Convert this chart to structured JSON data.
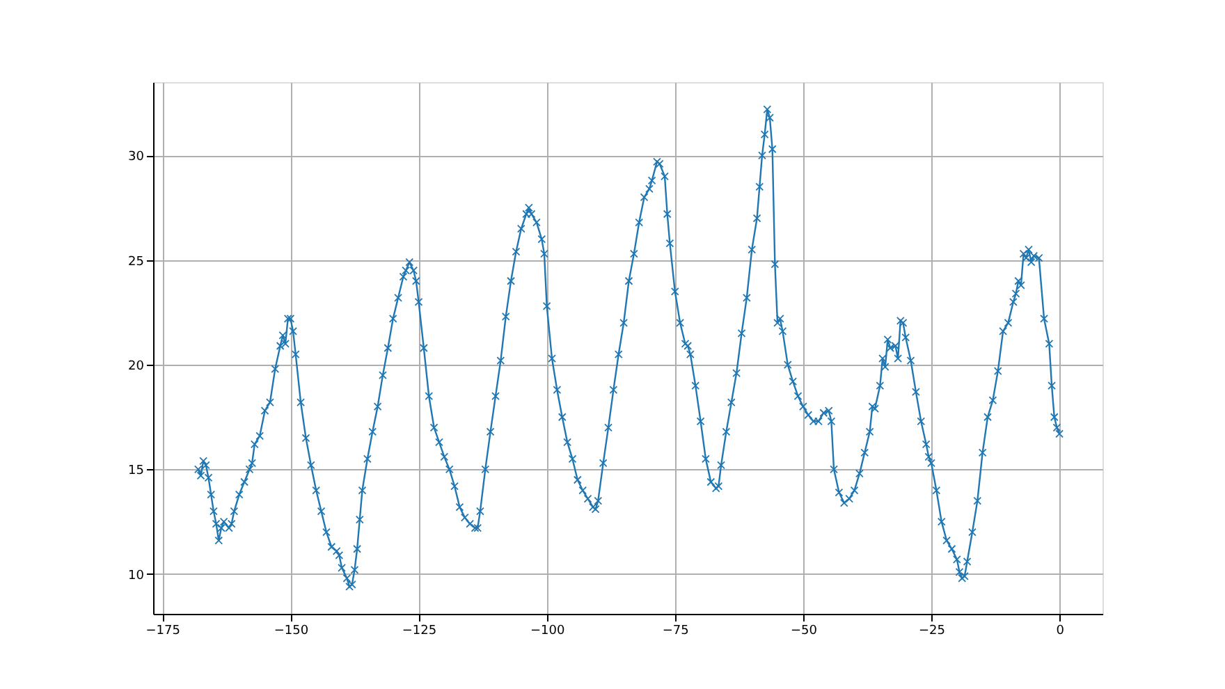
{
  "chart_data": {
    "type": "line",
    "marker": "cross",
    "line_style": "solid",
    "grid": true,
    "xlim": [
      -176.8,
      8.4
    ],
    "ylim": [
      8.1,
      33.5
    ],
    "xticks": [
      -175,
      -150,
      -125,
      -100,
      -75,
      -50,
      -25,
      0
    ],
    "yticks": [
      10,
      15,
      20,
      25,
      30
    ],
    "x": [
      -168,
      -167.5,
      -167,
      -166.5,
      -166,
      -165.5,
      -165,
      -164.5,
      -164,
      -163.5,
      -163,
      -162,
      -161.5,
      -161,
      -160,
      -159,
      -158,
      -157.5,
      -157,
      -156,
      -155,
      -154,
      -153,
      -152,
      -151.5,
      -151,
      -150.5,
      -150,
      -149.5,
      -149,
      -148,
      -147,
      -146,
      -145,
      -144,
      -143,
      -142,
      -141,
      -140.5,
      -140,
      -139,
      -138.5,
      -138,
      -137.5,
      -137,
      -136.5,
      -136,
      -135,
      -134,
      -133,
      -132,
      -131,
      -130,
      -129,
      -128,
      -127.5,
      -126.8,
      -126,
      -125.5,
      -125,
      -124,
      -123,
      -122,
      -121,
      -120,
      -119,
      -118,
      -117,
      -116,
      -115,
      -114,
      -113.5,
      -113,
      -112,
      -111,
      -110,
      -109,
      -108,
      -107,
      -106,
      -105,
      -104,
      -103.5,
      -103,
      -102,
      -101,
      -100.5,
      -100,
      -99,
      -98,
      -97,
      -96,
      -95,
      -94,
      -93,
      -92,
      -91,
      -90.5,
      -90,
      -89,
      -88,
      -87,
      -86,
      -85,
      -84,
      -83,
      -82,
      -81,
      -80,
      -79.5,
      -78.5,
      -78,
      -77,
      -76.5,
      -76,
      -75,
      -74,
      -73,
      -72.5,
      -72,
      -71,
      -70,
      -69,
      -68,
      -67,
      -66.5,
      -66,
      -65,
      -64,
      -63,
      -62,
      -61,
      -60,
      -59,
      -58.5,
      -58,
      -57.5,
      -57,
      -56.5,
      -56,
      -55.5,
      -55,
      -54.5,
      -54,
      -53,
      -52,
      -51,
      -50,
      -49,
      -48,
      -47,
      -46,
      -45,
      -44.5,
      -44,
      -43,
      -42,
      -41,
      -40,
      -39,
      -38,
      -37,
      -36.5,
      -36,
      -35,
      -34.5,
      -34,
      -33.5,
      -33,
      -32,
      -31.5,
      -31,
      -30.5,
      -30,
      -29,
      -28,
      -27,
      -26,
      -25.5,
      -25,
      -24,
      -23,
      -22,
      -21,
      -20,
      -19.5,
      -19,
      -18.5,
      -18,
      -17,
      -16,
      -15,
      -14,
      -13,
      -12,
      -11,
      -10,
      -9,
      -8.5,
      -8,
      -7.5,
      -7,
      -6.5,
      -6,
      -5.5,
      -5,
      -4,
      -3,
      -2,
      -1.5,
      -1,
      -0.5,
      0
    ],
    "series": [
      {
        "color": "#1f77b4",
        "values": [
          15.0,
          14.7,
          15.4,
          15.2,
          14.6,
          13.8,
          13.0,
          12.4,
          11.6,
          12.2,
          12.5,
          12.2,
          12.4,
          13.0,
          13.8,
          14.4,
          15.0,
          15.3,
          16.2,
          16.6,
          17.8,
          18.2,
          19.8,
          20.9,
          21.4,
          21.0,
          22.2,
          22.2,
          21.6,
          20.5,
          18.2,
          16.5,
          15.2,
          14.0,
          13.0,
          12.0,
          11.3,
          11.1,
          10.9,
          10.3,
          9.8,
          9.4,
          9.5,
          10.2,
          11.2,
          12.6,
          14.0,
          15.5,
          16.8,
          18.0,
          19.5,
          20.8,
          22.2,
          23.2,
          24.2,
          24.5,
          24.9,
          24.5,
          24.0,
          23.0,
          20.8,
          18.5,
          17.0,
          16.3,
          15.6,
          15.0,
          14.2,
          13.2,
          12.7,
          12.4,
          12.2,
          12.2,
          13.0,
          15.0,
          16.8,
          18.5,
          20.2,
          22.3,
          24.0,
          25.4,
          26.5,
          27.2,
          27.5,
          27.2,
          26.8,
          26.0,
          25.3,
          22.8,
          20.3,
          18.8,
          17.5,
          16.3,
          15.5,
          14.5,
          14.0,
          13.6,
          13.2,
          13.1,
          13.5,
          15.3,
          17.0,
          18.8,
          20.5,
          22.0,
          24.0,
          25.3,
          26.8,
          28.0,
          28.4,
          28.8,
          29.7,
          29.6,
          29.0,
          27.2,
          25.8,
          23.5,
          22.0,
          21.0,
          20.9,
          20.5,
          19.0,
          17.3,
          15.5,
          14.4,
          14.1,
          14.2,
          15.2,
          16.8,
          18.2,
          19.6,
          21.5,
          23.2,
          25.5,
          27.0,
          28.5,
          30.0,
          31.0,
          32.2,
          31.8,
          30.3,
          24.8,
          22.0,
          22.2,
          21.6,
          20.0,
          19.2,
          18.5,
          18.0,
          17.6,
          17.3,
          17.3,
          17.7,
          17.8,
          17.3,
          15.0,
          13.9,
          13.4,
          13.6,
          14.0,
          14.8,
          15.8,
          16.8,
          18.0,
          17.9,
          19.0,
          20.3,
          19.9,
          21.2,
          20.8,
          20.9,
          20.3,
          22.1,
          22.0,
          21.3,
          20.2,
          18.7,
          17.3,
          16.2,
          15.6,
          15.3,
          14.0,
          12.5,
          11.6,
          11.2,
          10.7,
          10.1,
          9.8,
          9.9,
          10.6,
          12.0,
          13.5,
          15.8,
          17.5,
          18.3,
          19.7,
          21.6,
          22.0,
          23.0,
          23.4,
          24.0,
          23.8,
          25.3,
          25.1,
          25.5,
          24.9,
          25.2,
          25.1,
          22.2,
          21.0,
          19.0,
          17.5,
          17.0,
          16.7
        ]
      }
    ]
  }
}
